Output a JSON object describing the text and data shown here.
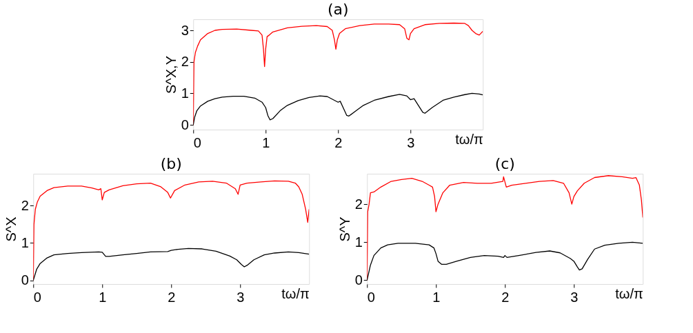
{
  "chart_data": [
    {
      "type": "line",
      "title": "(a)",
      "xlabel": "tω/π",
      "ylabel": "S^X,Y",
      "xlim": [
        0,
        4
      ],
      "xticks": [
        0,
        1,
        2,
        3
      ],
      "ylim": [
        -0.15,
        3.35
      ],
      "yticks": [
        0,
        1,
        2,
        3
      ],
      "grid": false,
      "line_style": "solid",
      "series": [
        {
          "color": "#ff0000",
          "x": [
            0,
            0.01,
            0.03,
            0.06,
            0.1,
            0.2,
            0.3,
            0.4,
            0.6,
            0.8,
            0.9,
            0.95,
            0.97,
            0.985,
            1.0,
            1.02,
            1.05,
            1.1,
            1.3,
            1.5,
            1.7,
            1.85,
            1.92,
            1.95,
            1.97,
            1.99,
            2.02,
            2.1,
            2.3,
            2.5,
            2.7,
            2.85,
            2.92,
            2.95,
            2.98,
            3.0,
            3.05,
            3.2,
            3.4,
            3.6,
            3.75,
            3.8,
            3.85,
            3.9,
            3.95,
            4.0
          ],
          "values": [
            0,
            2.0,
            2.3,
            2.5,
            2.7,
            2.9,
            3.0,
            3.03,
            3.04,
            3.0,
            2.98,
            2.85,
            2.4,
            1.85,
            2.4,
            2.8,
            2.85,
            2.95,
            3.08,
            3.13,
            3.15,
            3.12,
            3.0,
            2.7,
            2.4,
            2.7,
            2.9,
            3.05,
            3.15,
            3.2,
            3.2,
            3.18,
            3.05,
            2.75,
            2.7,
            2.9,
            3.05,
            3.18,
            3.22,
            3.23,
            3.22,
            3.15,
            3.0,
            2.9,
            2.85,
            2.97
          ]
        },
        {
          "color": "#000000",
          "x": [
            0,
            0.02,
            0.05,
            0.1,
            0.2,
            0.3,
            0.4,
            0.55,
            0.7,
            0.85,
            0.95,
            1.0,
            1.03,
            1.06,
            1.1,
            1.2,
            1.3,
            1.45,
            1.6,
            1.75,
            1.85,
            1.95,
            2.0,
            2.03,
            2.07,
            2.12,
            2.15,
            2.25,
            2.35,
            2.5,
            2.7,
            2.85,
            2.95,
            3.0,
            3.05,
            3.1,
            3.17,
            3.2,
            3.3,
            3.45,
            3.6,
            3.75,
            3.85,
            3.95,
            4.0
          ],
          "values": [
            0,
            0.25,
            0.45,
            0.6,
            0.75,
            0.83,
            0.88,
            0.91,
            0.91,
            0.85,
            0.72,
            0.55,
            0.3,
            0.16,
            0.2,
            0.45,
            0.62,
            0.77,
            0.87,
            0.92,
            0.9,
            0.78,
            0.72,
            0.75,
            0.55,
            0.3,
            0.28,
            0.45,
            0.62,
            0.78,
            0.9,
            0.97,
            0.92,
            0.8,
            0.83,
            0.65,
            0.4,
            0.37,
            0.55,
            0.78,
            0.88,
            0.96,
            1.0,
            0.98,
            0.95
          ]
        }
      ]
    },
    {
      "type": "line",
      "title": "(b)",
      "xlabel": "tω/π",
      "ylabel": "S^X",
      "xlim": [
        0,
        4
      ],
      "xticks": [
        0,
        1,
        2,
        3
      ],
      "ylim": [
        -0.1,
        2.85
      ],
      "yticks": [
        0,
        1,
        2
      ],
      "grid": false,
      "line_style": "solid",
      "series": [
        {
          "color": "#ff0000",
          "x": [
            0,
            0.01,
            0.03,
            0.06,
            0.1,
            0.2,
            0.3,
            0.5,
            0.7,
            0.85,
            0.95,
            0.98,
            1.0,
            1.03,
            1.1,
            1.3,
            1.5,
            1.7,
            1.85,
            1.95,
            1.99,
            2.05,
            2.2,
            2.4,
            2.6,
            2.8,
            2.93,
            2.97,
            3.0,
            3.1,
            3.3,
            3.5,
            3.7,
            3.8,
            3.85,
            3.9,
            3.95,
            3.98,
            4.0
          ],
          "values": [
            0,
            1.5,
            1.9,
            2.1,
            2.25,
            2.4,
            2.48,
            2.52,
            2.52,
            2.47,
            2.42,
            2.45,
            2.15,
            2.35,
            2.42,
            2.53,
            2.58,
            2.6,
            2.5,
            2.35,
            2.2,
            2.4,
            2.55,
            2.63,
            2.65,
            2.6,
            2.45,
            2.3,
            2.55,
            2.6,
            2.63,
            2.66,
            2.65,
            2.6,
            2.5,
            2.3,
            1.9,
            1.55,
            1.9
          ]
        },
        {
          "color": "#000000",
          "x": [
            0,
            0.05,
            0.1,
            0.2,
            0.3,
            0.5,
            0.7,
            0.95,
            1.0,
            1.05,
            1.1,
            1.3,
            1.5,
            1.7,
            1.95,
            2.0,
            2.1,
            2.25,
            2.45,
            2.65,
            2.85,
            2.95,
            3.02,
            3.06,
            3.1,
            3.2,
            3.35,
            3.5,
            3.7,
            3.85,
            4.0
          ],
          "values": [
            0,
            0.3,
            0.45,
            0.6,
            0.68,
            0.72,
            0.74,
            0.76,
            0.75,
            0.64,
            0.64,
            0.68,
            0.72,
            0.76,
            0.77,
            0.8,
            0.83,
            0.85,
            0.84,
            0.78,
            0.65,
            0.55,
            0.42,
            0.36,
            0.4,
            0.55,
            0.68,
            0.73,
            0.76,
            0.74,
            0.7
          ]
        }
      ]
    },
    {
      "type": "line",
      "title": "(c)",
      "xlabel": "tω/π",
      "ylabel": "S^Y",
      "xlim": [
        0,
        4
      ],
      "xticks": [
        0,
        1,
        2,
        3
      ],
      "ylim": [
        -0.1,
        2.8
      ],
      "yticks": [
        0,
        1,
        2
      ],
      "grid": false,
      "line_style": "solid",
      "series": [
        {
          "color": "#ff0000",
          "x": [
            0,
            0.01,
            0.03,
            0.05,
            0.1,
            0.2,
            0.35,
            0.5,
            0.65,
            0.8,
            0.9,
            0.95,
            0.98,
            1.0,
            1.03,
            1.1,
            1.2,
            1.4,
            1.6,
            1.8,
            1.97,
            1.98,
            2.02,
            2.1,
            2.3,
            2.5,
            2.7,
            2.85,
            2.93,
            2.97,
            3.0,
            3.05,
            3.15,
            3.3,
            3.5,
            3.7,
            3.85,
            3.9,
            3.95,
            3.98,
            4.0
          ],
          "values": [
            0,
            1.8,
            2.0,
            2.3,
            2.32,
            2.45,
            2.6,
            2.65,
            2.68,
            2.6,
            2.5,
            2.45,
            2.2,
            1.8,
            2.0,
            2.3,
            2.5,
            2.57,
            2.55,
            2.55,
            2.6,
            2.72,
            2.45,
            2.5,
            2.55,
            2.6,
            2.62,
            2.55,
            2.3,
            2.0,
            2.2,
            2.35,
            2.55,
            2.7,
            2.75,
            2.72,
            2.68,
            2.7,
            2.5,
            2.1,
            1.65
          ]
        },
        {
          "color": "#000000",
          "x": [
            0,
            0.05,
            0.1,
            0.2,
            0.3,
            0.45,
            0.7,
            0.9,
            0.97,
            1.0,
            1.03,
            1.08,
            1.15,
            1.3,
            1.5,
            1.7,
            1.9,
            1.98,
            2.0,
            2.03,
            2.2,
            2.45,
            2.65,
            2.8,
            2.95,
            3.0,
            3.05,
            3.08,
            3.12,
            3.2,
            3.3,
            3.45,
            3.65,
            3.85,
            4.0
          ],
          "values": [
            0,
            0.4,
            0.65,
            0.85,
            0.93,
            0.97,
            0.97,
            0.93,
            0.85,
            0.7,
            0.5,
            0.42,
            0.42,
            0.5,
            0.6,
            0.65,
            0.63,
            0.6,
            0.65,
            0.6,
            0.65,
            0.73,
            0.77,
            0.72,
            0.57,
            0.5,
            0.35,
            0.27,
            0.3,
            0.55,
            0.82,
            0.92,
            0.97,
            1.0,
            0.97
          ]
        }
      ]
    }
  ]
}
